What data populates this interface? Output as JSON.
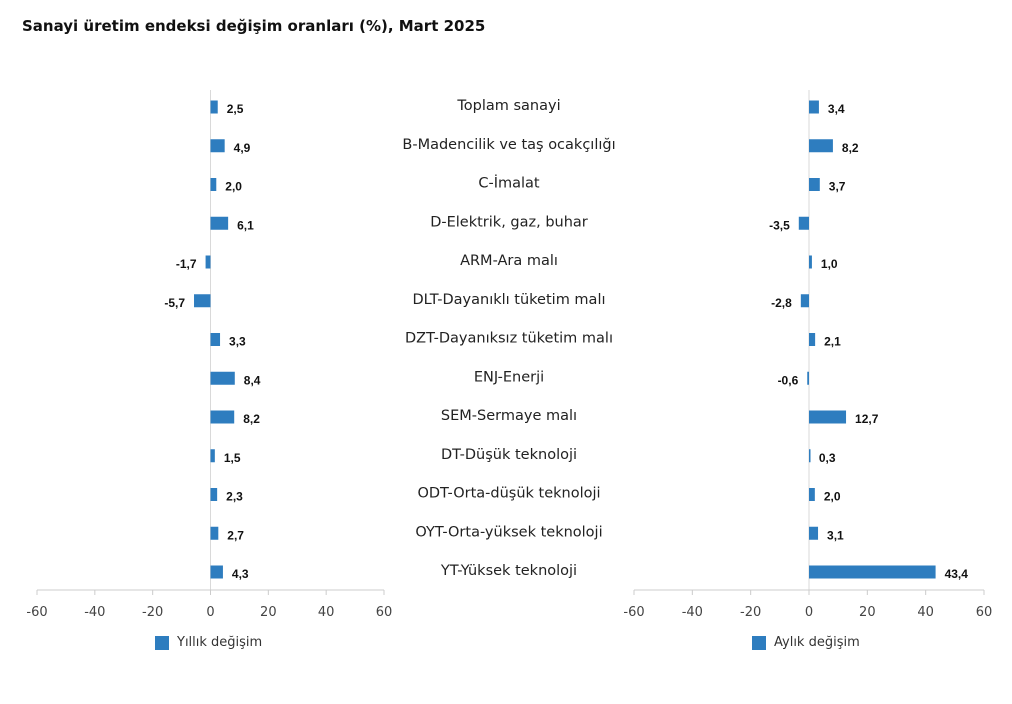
{
  "title": "Sanayi üretim endeksi değişim oranları (%), Mart 2025",
  "colors": {
    "bar": "#2e7dbf",
    "axis": "#cccccc",
    "text": "#111111"
  },
  "legend": {
    "left": "Yıllık değişim",
    "right": "Aylık değişim"
  },
  "chart_data": {
    "type": "bar",
    "orientation": "horizontal",
    "categories": [
      "Toplam sanayi",
      "B-Madencilik ve taş ocakçılığı",
      "C-İmalat",
      "D-Elektrik, gaz, buhar",
      "ARM-Ara malı",
      "DLT-Dayanıklı tüketim malı",
      "DZT-Dayanıksız tüketim malı",
      "ENJ-Enerji",
      "SEM-Sermaye malı",
      "DT-Düşük teknoloji",
      "ODT-Orta-düşük teknoloji",
      "OYT-Orta-yüksek teknoloji",
      "YT-Yüksek teknoloji"
    ],
    "series": [
      {
        "name": "Yıllık değişim",
        "values": [
          2.5,
          4.9,
          2.0,
          6.1,
          -1.7,
          -5.7,
          3.3,
          8.4,
          8.2,
          1.5,
          2.3,
          2.7,
          4.3
        ],
        "labels": [
          "2,5",
          "4,9",
          "2,0",
          "6,1",
          "-1,7",
          "-5,7",
          "3,3",
          "8,4",
          "8,2",
          "1,5",
          "2,3",
          "2,7",
          "4,3"
        ]
      },
      {
        "name": "Aylık değişim",
        "values": [
          3.4,
          8.2,
          3.7,
          -3.5,
          1.0,
          -2.8,
          2.1,
          -0.6,
          12.7,
          0.3,
          2.0,
          3.1,
          43.4
        ],
        "labels": [
          "3,4",
          "8,2",
          "3,7",
          "-3,5",
          "1,0",
          "-2,8",
          "2,1",
          "-0,6",
          "12,7",
          "0,3",
          "2,0",
          "3,1",
          "43,4"
        ]
      }
    ],
    "xlim": [
      -60,
      60
    ],
    "xticks": [
      -60,
      -40,
      -20,
      0,
      20,
      40,
      60
    ],
    "xtick_labels": [
      "-60",
      "-40",
      "-20",
      "0",
      "20",
      "40",
      "60"
    ],
    "grid": false,
    "legend_position": "bottom"
  }
}
